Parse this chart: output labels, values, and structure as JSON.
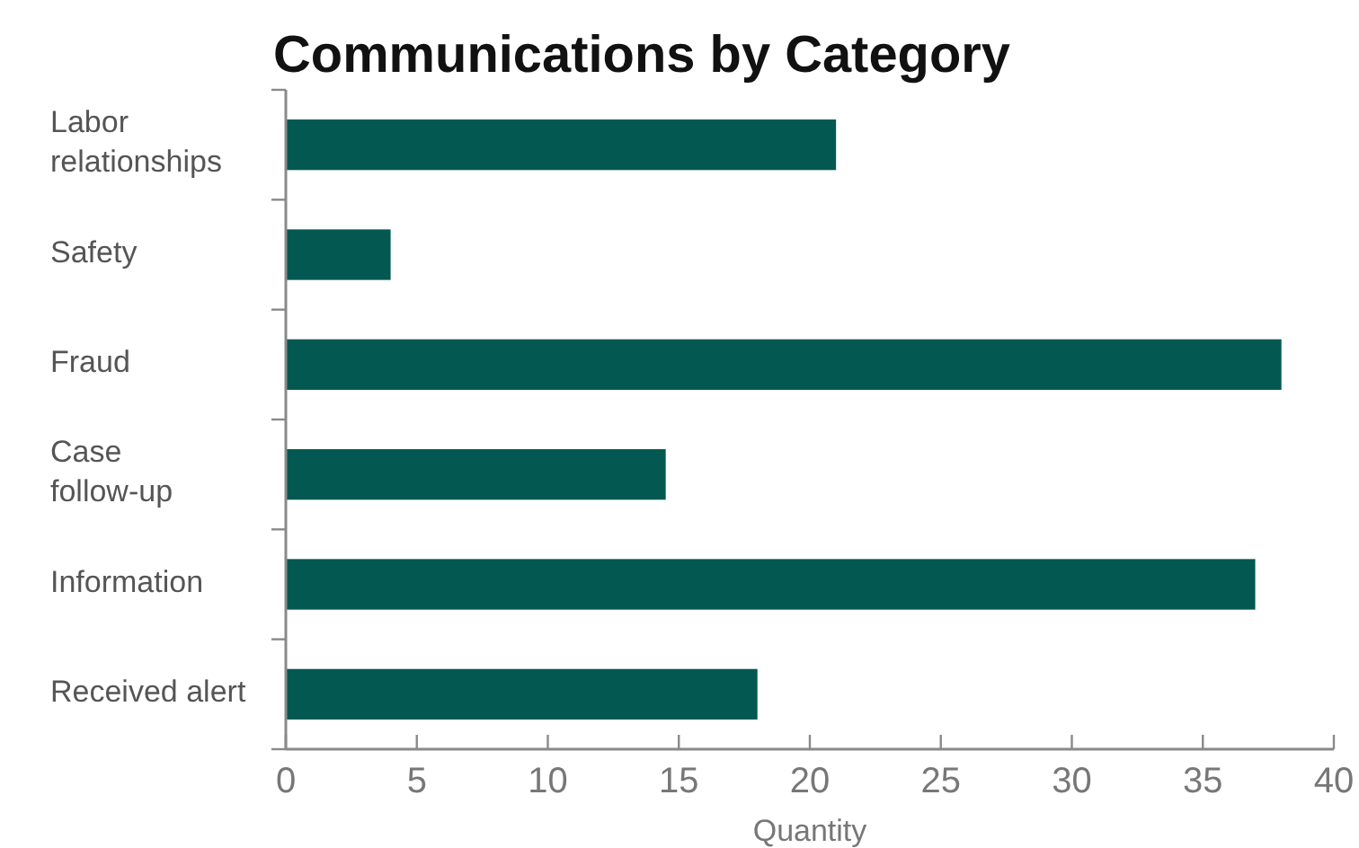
{
  "chart_data": {
    "type": "bar",
    "orientation": "horizontal",
    "title": "Communications by Category",
    "xlabel": "Quantity",
    "categories": [
      "Labor\nrelationships",
      "Safety",
      "Fraud",
      "Case\nfollow-up",
      "Information",
      "Received alert"
    ],
    "values": [
      21,
      4,
      38,
      14.5,
      37,
      18
    ],
    "color": "#035951",
    "xlim": [
      0,
      40
    ],
    "xticks": [
      0,
      5,
      10,
      15,
      20,
      25,
      30,
      35,
      40
    ],
    "grid": false
  }
}
